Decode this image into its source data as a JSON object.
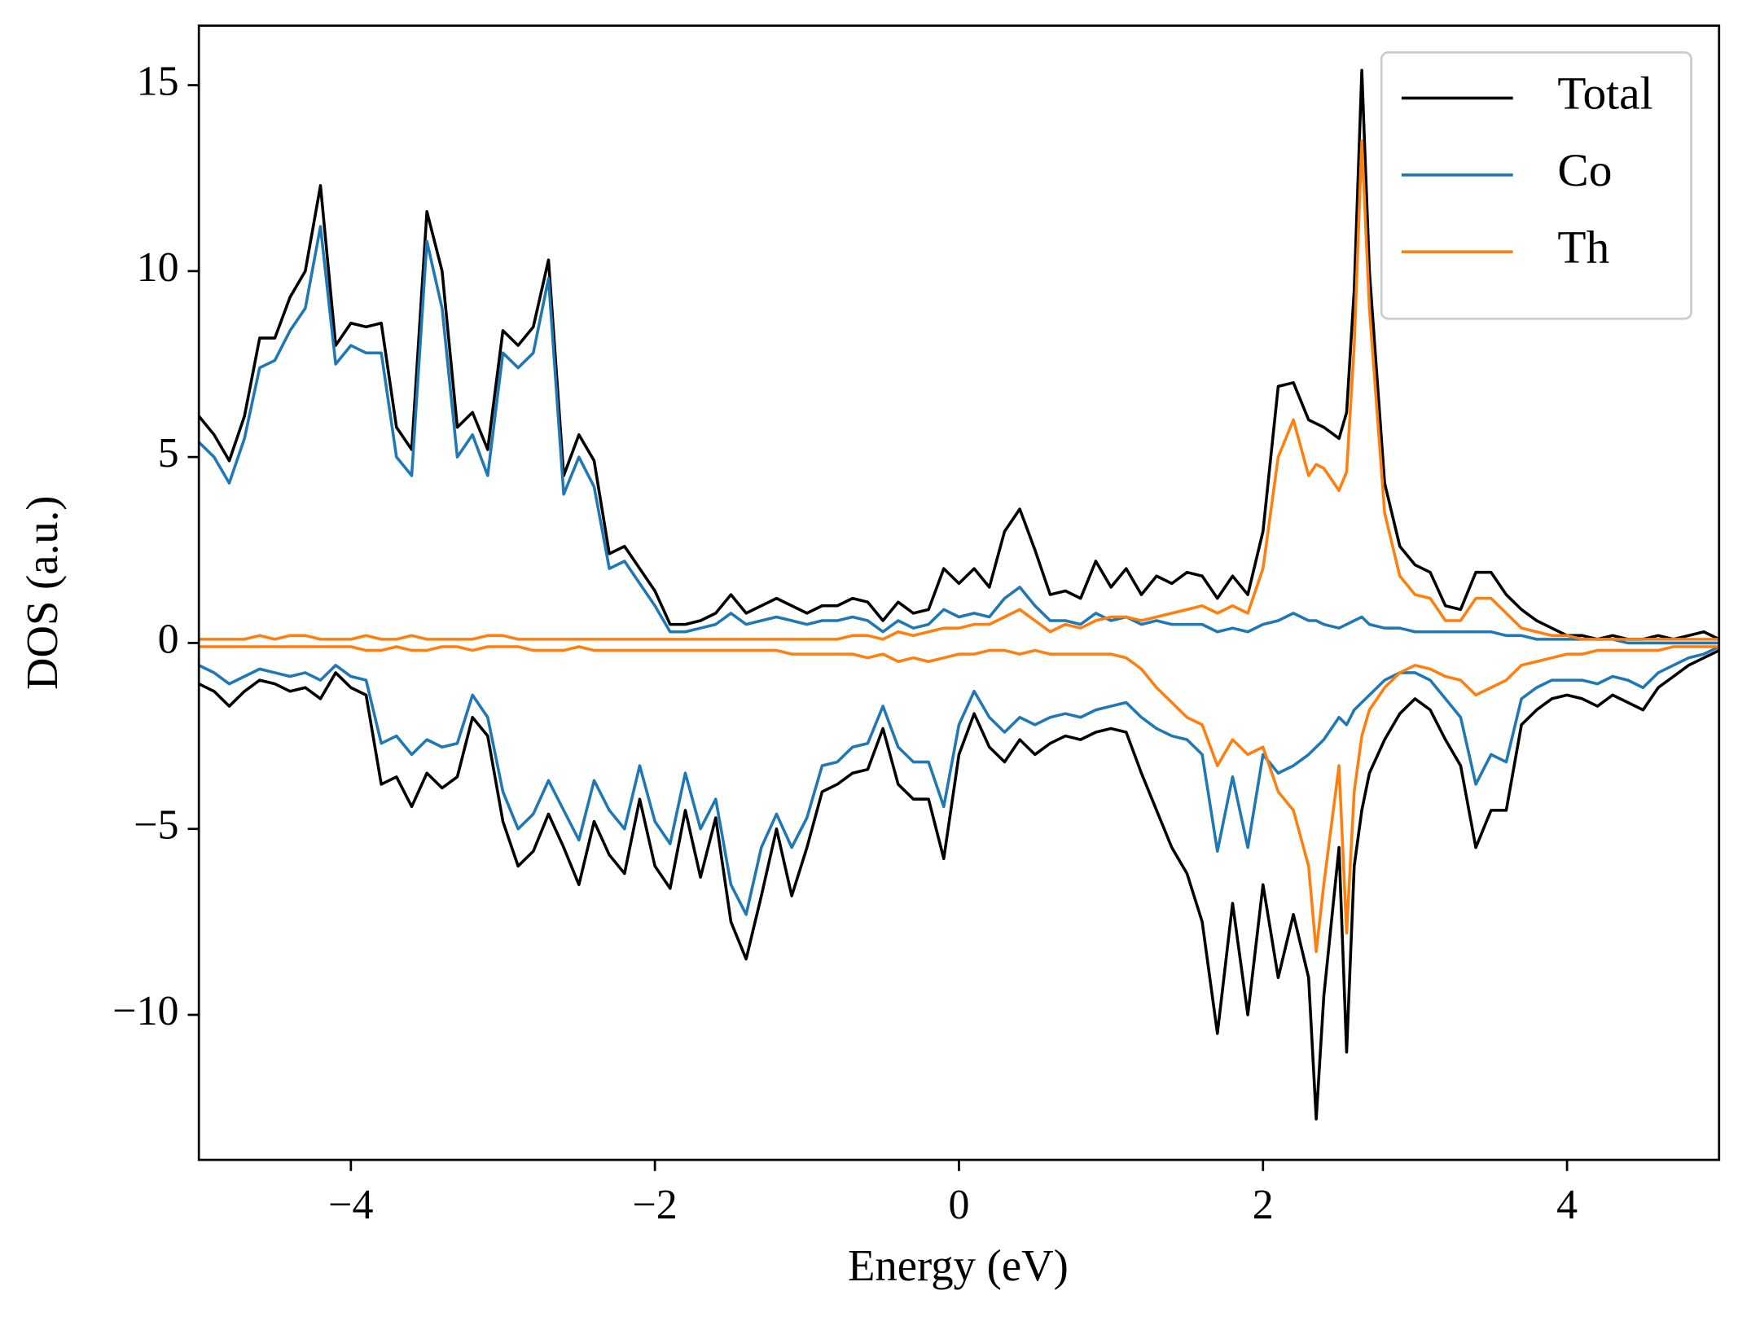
{
  "chart_data": {
    "type": "line",
    "xlabel": "Energy (eV)",
    "ylabel": "DOS (a.u.)",
    "x": [
      -5,
      -4.9,
      -4.8,
      -4.7,
      -4.6,
      -4.5,
      -4.4,
      -4.3,
      -4.2,
      -4.1,
      -4,
      -3.9,
      -3.8,
      -3.7,
      -3.6,
      -3.5,
      -3.4,
      -3.3,
      -3.2,
      -3.1,
      -3,
      -2.9,
      -2.8,
      -2.7,
      -2.6,
      -2.5,
      -2.4,
      -2.3,
      -2.2,
      -2.1,
      -2,
      -1.9,
      -1.8,
      -1.7,
      -1.6,
      -1.5,
      -1.4,
      -1.3,
      -1.2,
      -1.1,
      -1,
      -0.9,
      -0.8,
      -0.7,
      -0.6,
      -0.5,
      -0.4,
      -0.3,
      -0.2,
      -0.1,
      0,
      0.1,
      0.2,
      0.3,
      0.4,
      0.5,
      0.6,
      0.7,
      0.8,
      0.9,
      1,
      1.1,
      1.2,
      1.3,
      1.4,
      1.5,
      1.6,
      1.7,
      1.8,
      1.9,
      2,
      2.1,
      2.2,
      2.3,
      2.35,
      2.4,
      2.5,
      2.55,
      2.6,
      2.65,
      2.7,
      2.8,
      2.9,
      3,
      3.1,
      3.2,
      3.3,
      3.4,
      3.5,
      3.6,
      3.7,
      3.8,
      3.9,
      4,
      4.1,
      4.2,
      4.3,
      4.4,
      4.5,
      4.6,
      4.7,
      4.8,
      4.9,
      5
    ],
    "series": [
      {
        "name": "Total",
        "color": "#000000",
        "values": [
          6.1,
          5.6,
          4.9,
          6.1,
          8.2,
          8.2,
          9.3,
          10.0,
          12.3,
          8.0,
          8.6,
          8.5,
          8.6,
          5.8,
          5.2,
          11.6,
          10.0,
          5.8,
          6.2,
          5.2,
          8.4,
          8.0,
          8.5,
          10.3,
          4.5,
          5.6,
          4.9,
          2.4,
          2.6,
          2.0,
          1.4,
          0.5,
          0.5,
          0.6,
          0.8,
          1.3,
          0.8,
          1.0,
          1.2,
          1.0,
          0.8,
          1.0,
          1.0,
          1.2,
          1.1,
          0.6,
          1.1,
          0.8,
          0.9,
          2.0,
          1.6,
          2.0,
          1.5,
          3.0,
          3.6,
          2.5,
          1.3,
          1.4,
          1.2,
          2.2,
          1.5,
          2.0,
          1.3,
          1.8,
          1.6,
          1.9,
          1.8,
          1.2,
          1.8,
          1.3,
          3.0,
          6.9,
          7.0,
          6.0,
          5.9,
          5.8,
          5.5,
          6.2,
          9.5,
          15.4,
          10.0,
          4.3,
          2.6,
          2.1,
          1.9,
          1.0,
          0.9,
          1.9,
          1.9,
          1.3,
          0.9,
          0.6,
          0.4,
          0.2,
          0.2,
          0.1,
          0.2,
          0.1,
          0.1,
          0.2,
          0.1,
          0.2,
          0.3,
          0.1
        ]
      },
      {
        "name": "Co",
        "color": "#1f77b4",
        "values": [
          5.4,
          5.0,
          4.3,
          5.5,
          7.4,
          7.6,
          8.4,
          9.0,
          11.2,
          7.5,
          8.0,
          7.8,
          7.8,
          5.0,
          4.5,
          10.8,
          9.0,
          5.0,
          5.6,
          4.5,
          7.8,
          7.4,
          7.8,
          9.8,
          4.0,
          5.0,
          4.2,
          2.0,
          2.2,
          1.6,
          1.0,
          0.3,
          0.3,
          0.4,
          0.5,
          0.8,
          0.5,
          0.6,
          0.7,
          0.6,
          0.5,
          0.6,
          0.6,
          0.7,
          0.6,
          0.3,
          0.6,
          0.4,
          0.5,
          0.9,
          0.7,
          0.8,
          0.7,
          1.2,
          1.5,
          1.0,
          0.6,
          0.6,
          0.5,
          0.8,
          0.6,
          0.7,
          0.5,
          0.6,
          0.5,
          0.5,
          0.5,
          0.3,
          0.4,
          0.3,
          0.5,
          0.6,
          0.8,
          0.6,
          0.6,
          0.5,
          0.4,
          0.5,
          0.6,
          0.7,
          0.5,
          0.4,
          0.4,
          0.3,
          0.3,
          0.3,
          0.3,
          0.3,
          0.3,
          0.2,
          0.2,
          0.1,
          0.1,
          0.1,
          0.1,
          0.1,
          0.1,
          0,
          0,
          0,
          0,
          0,
          0,
          0
        ]
      },
      {
        "name": "Th",
        "color": "#ff7f0e",
        "values": [
          0.1,
          0.1,
          0.1,
          0.1,
          0.2,
          0.1,
          0.2,
          0.2,
          0.1,
          0.1,
          0.1,
          0.2,
          0.1,
          0.1,
          0.2,
          0.1,
          0.1,
          0.1,
          0.1,
          0.2,
          0.2,
          0.1,
          0.1,
          0.1,
          0.1,
          0.1,
          0.1,
          0.1,
          0.1,
          0.1,
          0.1,
          0.1,
          0.1,
          0.1,
          0.1,
          0.1,
          0.1,
          0.1,
          0.1,
          0.1,
          0.1,
          0.1,
          0.1,
          0.2,
          0.2,
          0.1,
          0.3,
          0.2,
          0.3,
          0.4,
          0.4,
          0.5,
          0.5,
          0.7,
          0.9,
          0.6,
          0.3,
          0.5,
          0.4,
          0.6,
          0.7,
          0.7,
          0.6,
          0.7,
          0.8,
          0.9,
          1.0,
          0.8,
          1.0,
          0.8,
          2.0,
          5.0,
          6.0,
          4.5,
          4.8,
          4.7,
          4.1,
          4.6,
          8.0,
          13.5,
          9.0,
          3.5,
          1.8,
          1.3,
          1.2,
          0.6,
          0.6,
          1.2,
          1.2,
          0.8,
          0.4,
          0.3,
          0.2,
          0.2,
          0.1,
          0.1,
          0.1,
          0.1,
          0.1,
          0.1,
          0.1,
          0.1,
          0.1,
          0.1
        ]
      },
      {
        "color": "#000000",
        "values": [
          -1.1,
          -1.3,
          -1.7,
          -1.3,
          -1.0,
          -1.1,
          -1.3,
          -1.2,
          -1.5,
          -0.8,
          -1.2,
          -1.4,
          -3.8,
          -3.6,
          -4.4,
          -3.5,
          -3.9,
          -3.6,
          -2.0,
          -2.5,
          -4.8,
          -6.0,
          -5.6,
          -4.6,
          -5.5,
          -6.5,
          -4.8,
          -5.7,
          -6.2,
          -4.2,
          -6.0,
          -6.6,
          -4.5,
          -6.3,
          -4.7,
          -7.5,
          -8.5,
          -6.8,
          -5.0,
          -6.8,
          -5.5,
          -4.0,
          -3.8,
          -3.5,
          -3.4,
          -2.3,
          -3.8,
          -4.2,
          -4.2,
          -5.8,
          -3.0,
          -1.9,
          -2.8,
          -3.2,
          -2.6,
          -3.0,
          -2.7,
          -2.5,
          -2.6,
          -2.4,
          -2.3,
          -2.4,
          -3.5,
          -4.5,
          -5.5,
          -6.2,
          -7.5,
          -10.5,
          -7.0,
          -10.0,
          -6.5,
          -9.0,
          -7.3,
          -9.0,
          -12.8,
          -9.5,
          -5.5,
          -11.0,
          -6.0,
          -4.5,
          -3.5,
          -2.6,
          -1.9,
          -1.5,
          -1.8,
          -2.6,
          -3.3,
          -5.5,
          -4.5,
          -4.5,
          -2.2,
          -1.8,
          -1.5,
          -1.4,
          -1.5,
          -1.7,
          -1.4,
          -1.6,
          -1.8,
          -1.2,
          -0.9,
          -0.6,
          -0.4,
          -0.2
        ]
      },
      {
        "color": "#1f77b4",
        "values": [
          -0.6,
          -0.8,
          -1.1,
          -0.9,
          -0.7,
          -0.8,
          -0.9,
          -0.8,
          -1.0,
          -0.6,
          -0.9,
          -1.0,
          -2.7,
          -2.5,
          -3.0,
          -2.6,
          -2.8,
          -2.7,
          -1.4,
          -2.0,
          -4.0,
          -5.0,
          -4.6,
          -3.7,
          -4.5,
          -5.3,
          -3.7,
          -4.5,
          -5.0,
          -3.3,
          -4.8,
          -5.4,
          -3.5,
          -5.0,
          -4.2,
          -6.5,
          -7.3,
          -5.5,
          -4.6,
          -5.5,
          -4.7,
          -3.3,
          -3.2,
          -2.8,
          -2.7,
          -1.7,
          -2.8,
          -3.2,
          -3.2,
          -4.4,
          -2.2,
          -1.3,
          -2.0,
          -2.4,
          -2.0,
          -2.2,
          -2.0,
          -1.9,
          -2.0,
          -1.8,
          -1.7,
          -1.6,
          -2.0,
          -2.3,
          -2.5,
          -2.6,
          -3.0,
          -5.6,
          -3.6,
          -5.5,
          -3.0,
          -3.5,
          -3.3,
          -3.0,
          -2.8,
          -2.6,
          -2.0,
          -2.2,
          -1.8,
          -1.6,
          -1.4,
          -1.0,
          -0.8,
          -0.8,
          -1.0,
          -1.5,
          -2.0,
          -3.8,
          -3.0,
          -3.2,
          -1.5,
          -1.2,
          -1.0,
          -1.0,
          -1.0,
          -1.1,
          -0.9,
          -1.0,
          -1.2,
          -0.8,
          -0.6,
          -0.4,
          -0.3,
          -0.1
        ]
      },
      {
        "color": "#ff7f0e",
        "values": [
          -0.1,
          -0.1,
          -0.1,
          -0.1,
          -0.1,
          -0.1,
          -0.1,
          -0.1,
          -0.1,
          -0.1,
          -0.1,
          -0.2,
          -0.2,
          -0.1,
          -0.2,
          -0.2,
          -0.1,
          -0.1,
          -0.2,
          -0.1,
          -0.1,
          -0.1,
          -0.2,
          -0.2,
          -0.2,
          -0.1,
          -0.2,
          -0.2,
          -0.2,
          -0.2,
          -0.2,
          -0.2,
          -0.2,
          -0.2,
          -0.2,
          -0.2,
          -0.2,
          -0.2,
          -0.2,
          -0.3,
          -0.3,
          -0.3,
          -0.3,
          -0.3,
          -0.4,
          -0.3,
          -0.5,
          -0.4,
          -0.5,
          -0.4,
          -0.3,
          -0.3,
          -0.2,
          -0.2,
          -0.3,
          -0.2,
          -0.3,
          -0.3,
          -0.3,
          -0.3,
          -0.3,
          -0.4,
          -0.7,
          -1.2,
          -1.6,
          -2.0,
          -2.2,
          -3.3,
          -2.6,
          -3.0,
          -2.8,
          -4.0,
          -4.5,
          -6.0,
          -8.3,
          -6.5,
          -3.3,
          -7.8,
          -4.0,
          -2.5,
          -1.8,
          -1.2,
          -0.8,
          -0.6,
          -0.7,
          -0.9,
          -1.0,
          -1.4,
          -1.2,
          -1.0,
          -0.6,
          -0.5,
          -0.4,
          -0.3,
          -0.3,
          -0.2,
          -0.2,
          -0.2,
          -0.2,
          -0.2,
          -0.1,
          -0.1,
          -0.1,
          -0.1
        ]
      }
    ],
    "xlim": [
      -5,
      5
    ],
    "ylim": [
      -13.9,
      16.6
    ],
    "xticks": [
      {
        "value": -4,
        "label": "−4"
      },
      {
        "value": -2,
        "label": "−2"
      },
      0,
      2,
      4
    ],
    "yticks": [
      {
        "value": -10,
        "label": "−10"
      },
      {
        "value": -5,
        "label": "−5"
      },
      0,
      5,
      10,
      15
    ],
    "grid": false,
    "legend": "upper right"
  }
}
